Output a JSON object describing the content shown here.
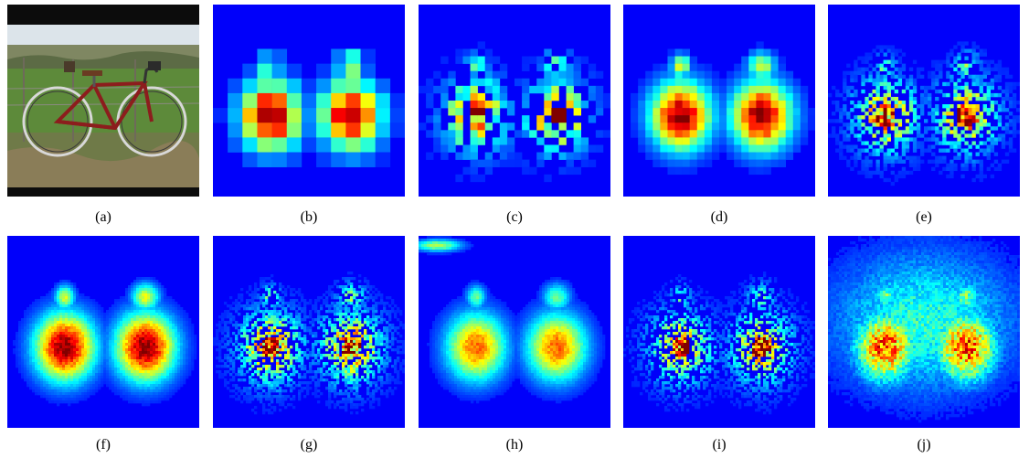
{
  "figure": {
    "panels": [
      {
        "id": "a",
        "label": "(a)",
        "kind": "photo",
        "content": "touring bicycle on grass field"
      },
      {
        "id": "b",
        "label": "(b)",
        "kind": "heatmap",
        "grid": 13,
        "style": "coarse"
      },
      {
        "id": "c",
        "label": "(c)",
        "kind": "heatmap",
        "grid": 26,
        "style": "sparse"
      },
      {
        "id": "d",
        "label": "(d)",
        "kind": "heatmap",
        "grid": 26,
        "style": "blocky"
      },
      {
        "id": "e",
        "label": "(e)",
        "kind": "heatmap",
        "grid": 52,
        "style": "sparse"
      },
      {
        "id": "f",
        "label": "(f)",
        "kind": "heatmap",
        "grid": 70,
        "style": "smooth-hot"
      },
      {
        "id": "g",
        "label": "(g)",
        "kind": "heatmap",
        "grid": 70,
        "style": "speckled"
      },
      {
        "id": "h",
        "label": "(h)",
        "kind": "heatmap",
        "grid": 70,
        "style": "smooth-cool"
      },
      {
        "id": "i",
        "label": "(i)",
        "kind": "heatmap",
        "grid": 70,
        "style": "faint-dots"
      },
      {
        "id": "j",
        "label": "(j)",
        "kind": "heatmap",
        "grid": 70,
        "style": "grainy"
      }
    ]
  }
}
